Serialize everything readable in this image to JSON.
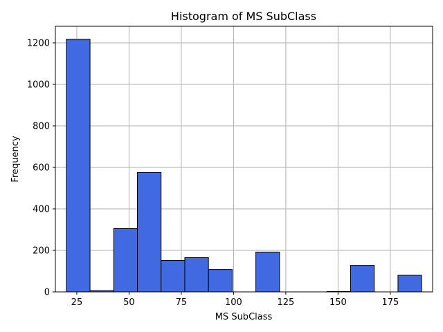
{
  "chart_data": {
    "type": "bar",
    "title": "Histogram of MS SubClass",
    "xlabel": "MS SubClass",
    "ylabel": "Frequency",
    "xlim": [
      14.75,
      195.25
    ],
    "ylim": [
      0,
      1280
    ],
    "xticks": [
      25,
      50,
      75,
      100,
      125,
      150,
      175
    ],
    "yticks": [
      0,
      200,
      400,
      600,
      800,
      1000,
      1200
    ],
    "grid": true,
    "bar_color": "#4169e1",
    "edge_color": "#000000",
    "bins": [
      {
        "x0": 20.0,
        "x1": 31.33,
        "value": 1218
      },
      {
        "x0": 31.33,
        "x1": 42.67,
        "value": 6
      },
      {
        "x0": 42.67,
        "x1": 54.0,
        "value": 305
      },
      {
        "x0": 54.0,
        "x1": 65.33,
        "value": 575
      },
      {
        "x0": 65.33,
        "x1": 76.67,
        "value": 152
      },
      {
        "x0": 76.67,
        "x1": 88.0,
        "value": 165
      },
      {
        "x0": 88.0,
        "x1": 99.33,
        "value": 108
      },
      {
        "x0": 99.33,
        "x1": 110.67,
        "value": 0
      },
      {
        "x0": 110.67,
        "x1": 122.0,
        "value": 192
      },
      {
        "x0": 122.0,
        "x1": 133.33,
        "value": 0
      },
      {
        "x0": 133.33,
        "x1": 144.67,
        "value": 0
      },
      {
        "x0": 144.67,
        "x1": 156.0,
        "value": 2
      },
      {
        "x0": 156.0,
        "x1": 167.33,
        "value": 128
      },
      {
        "x0": 167.33,
        "x1": 178.67,
        "value": 0
      },
      {
        "x0": 178.67,
        "x1": 190.0,
        "value": 80
      }
    ]
  }
}
